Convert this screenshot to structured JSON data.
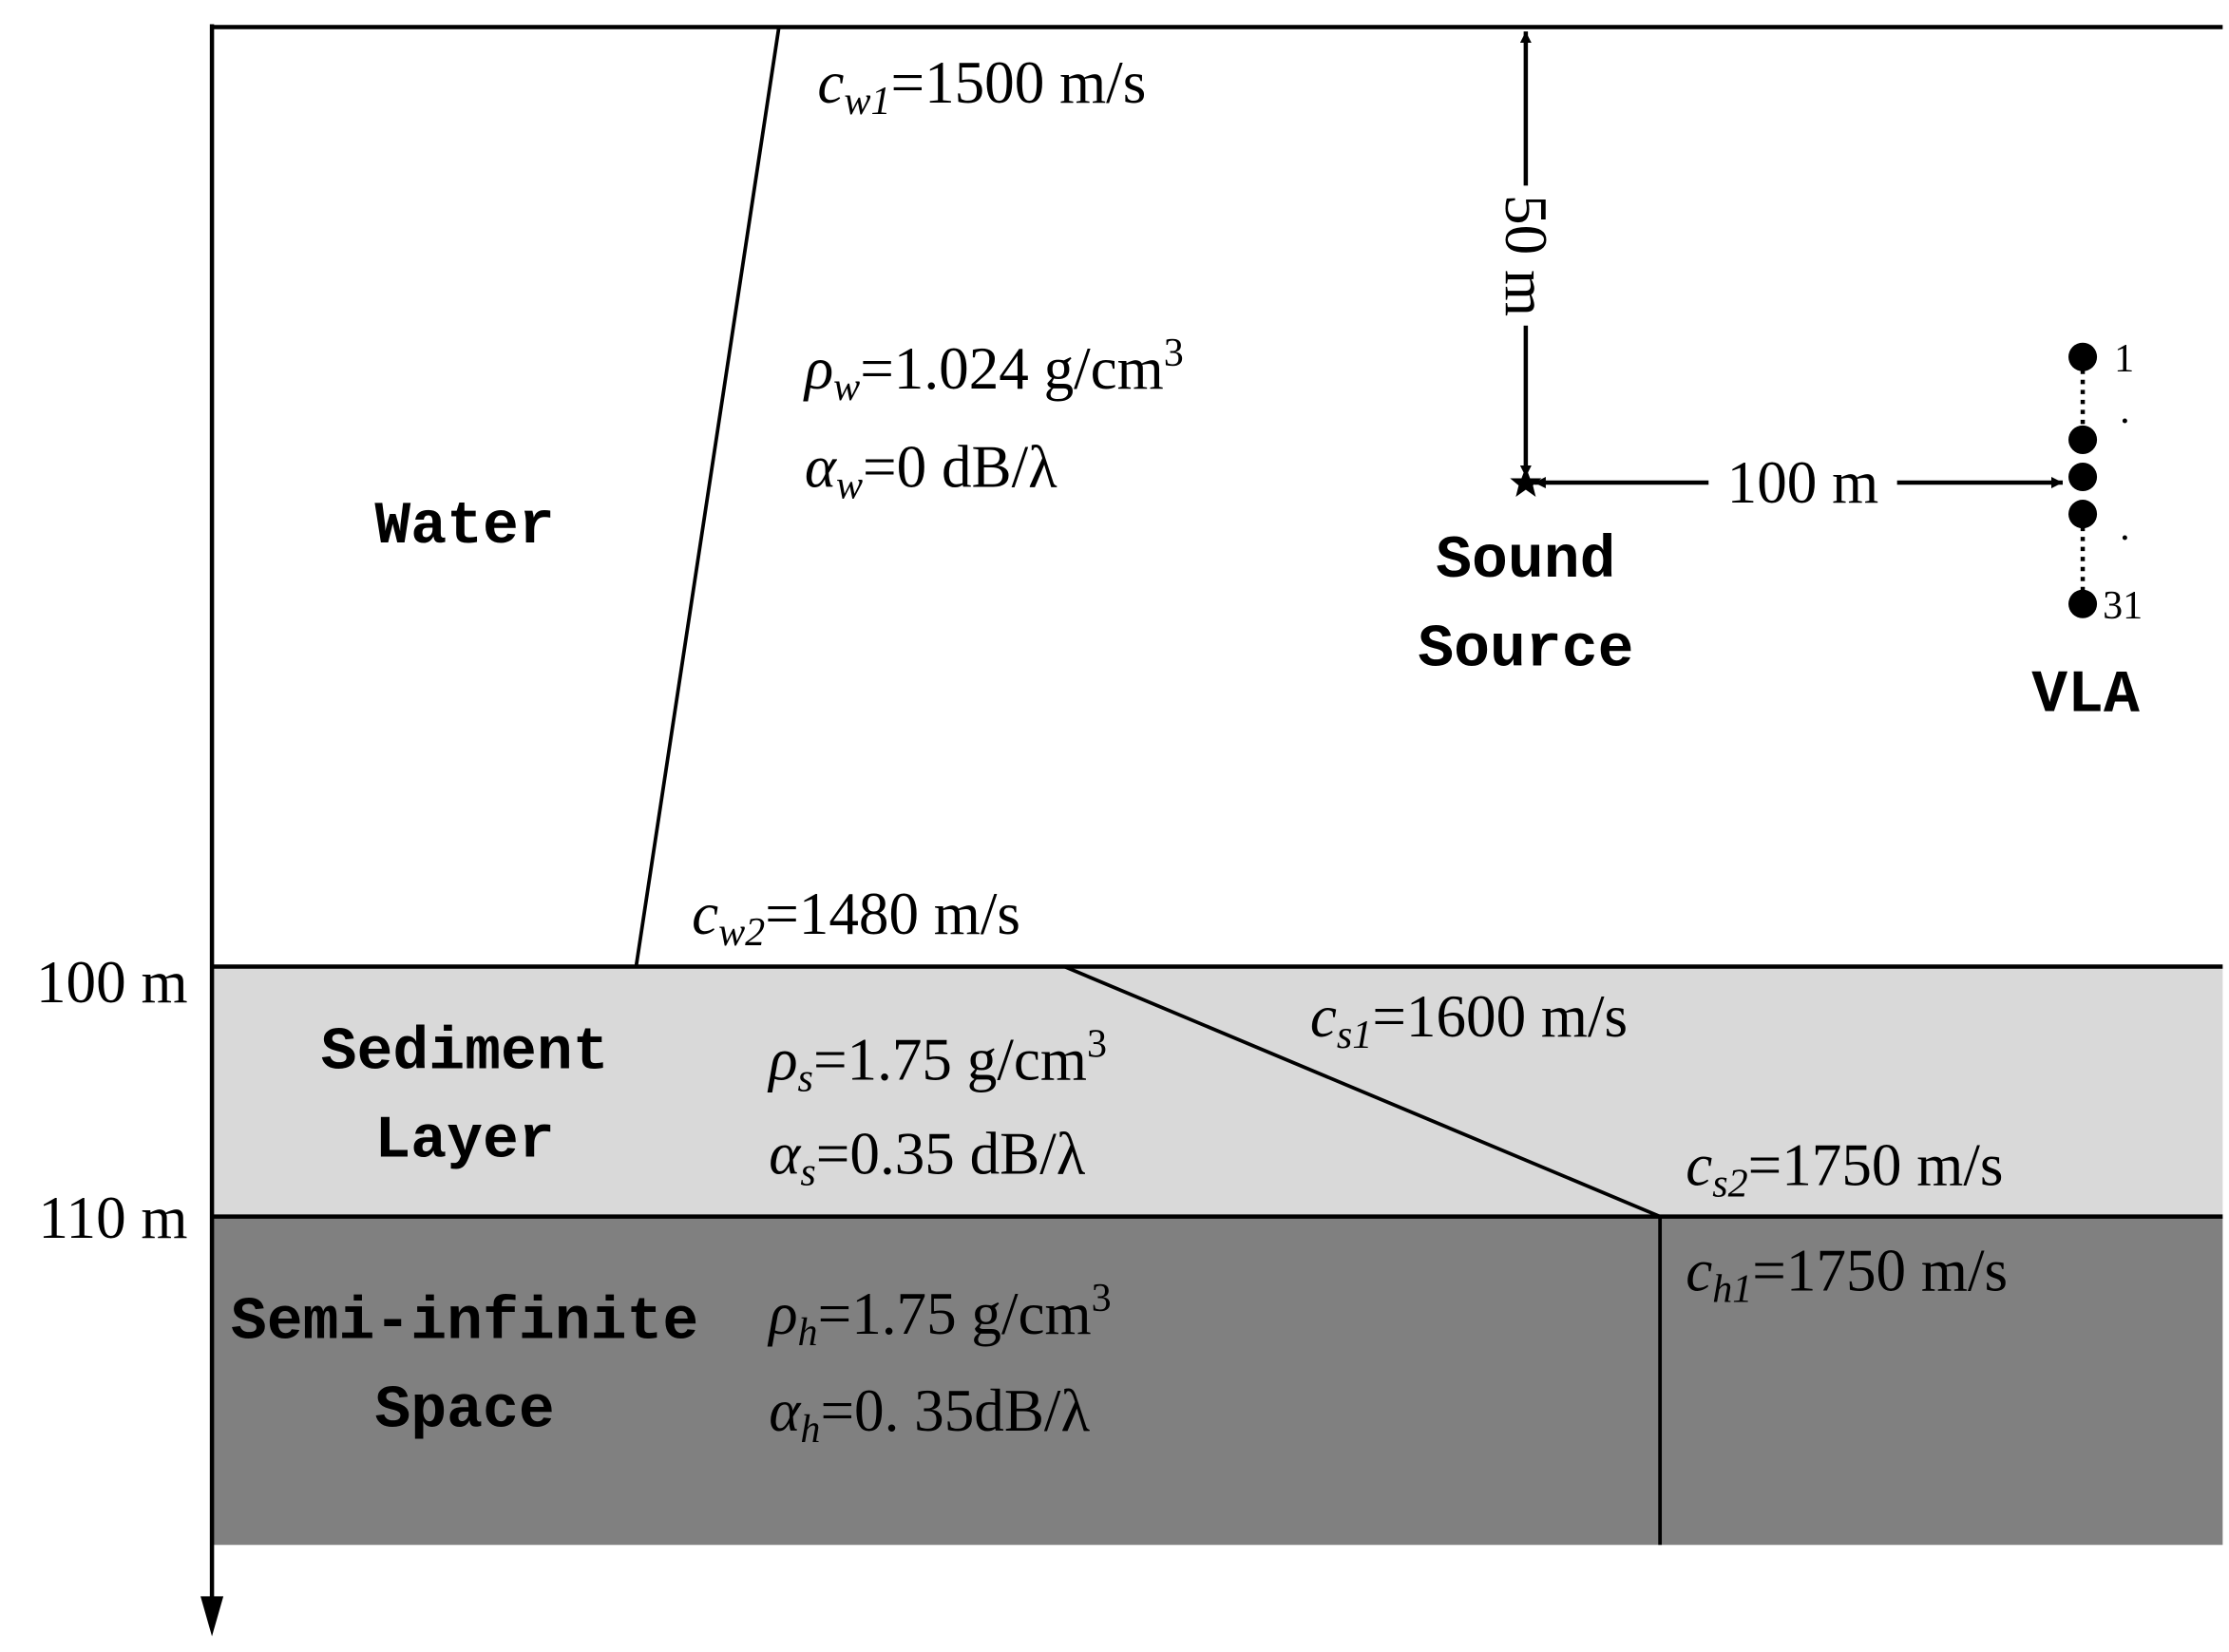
{
  "layers": [
    {
      "lines": [
        "Water"
      ]
    },
    {
      "lines": [
        "Sediment",
        "Layer"
      ]
    },
    {
      "lines": [
        "Semi-infinite",
        "Space"
      ]
    }
  ],
  "params": [
    {
      "sym": "c",
      "sub": "w1",
      "text": "=1500 m/s"
    },
    {
      "sym": "ρ",
      "sub": "w",
      "text": "=1.024 g/cm",
      "sup": "3"
    },
    {
      "sym": "α",
      "sub": "w",
      "text": "=0 dB/λ"
    },
    {
      "sym": "c",
      "sub": "w2",
      "text": "=1480 m/s"
    },
    {
      "sym": "ρ",
      "sub": "s",
      "text": "=1.75 g/cm",
      "sup": "3"
    },
    {
      "sym": "α",
      "sub": "s",
      "text": "=0.35 dB/λ"
    },
    {
      "sym": "c",
      "sub": "s1",
      "text": "=1600 m/s"
    },
    {
      "sym": "c",
      "sub": "s2",
      "text": "=1750 m/s"
    },
    {
      "sym": "c",
      "sub": "h1",
      "text": "=1750 m/s"
    },
    {
      "sym": "ρ",
      "sub": "h",
      "text": "=1.75 g/cm",
      "sup": "3"
    },
    {
      "sym": "α",
      "sub": "h",
      "text": "=0. 35dB/λ"
    }
  ],
  "depths": [
    "100 m",
    "110 m"
  ],
  "geometry": {
    "source_depth": "50 m",
    "range": "100 m",
    "source_label": [
      "Sound",
      "Source"
    ],
    "array_label": "VLA",
    "element_labels": [
      "1",
      ".",
      ".",
      "31"
    ]
  }
}
